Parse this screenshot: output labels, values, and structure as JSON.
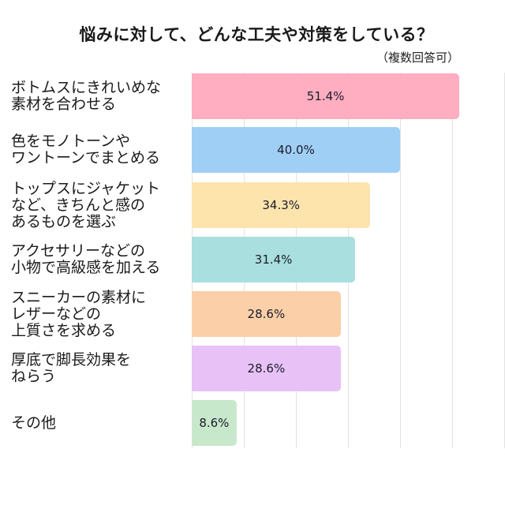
{
  "header": {
    "title": "悩みに対して、どんな工夫や対策をしている？",
    "subtitle": "（複数回答可）"
  },
  "chart_data": {
    "type": "bar",
    "orientation": "horizontal",
    "title": "悩みに対して、どんな工夫や対策をしている？",
    "subtitle": "（複数回答可）",
    "xlabel": "",
    "ylabel": "",
    "xlim": [
      0,
      60
    ],
    "grid": true,
    "legend": null,
    "categories": [
      "ボトムスにきれいめな素材を合わせる",
      "色をモノトーンやワントーンでまとめる",
      "トップスにジャケットなど、きちんと感のあるものを選ぶ",
      "アクセサリーなどの小物で高級感を加える",
      "スニーカーの素材にレザーなどの上質さを求める",
      "厚底で脚長効果をねらう",
      "その他"
    ],
    "values": [
      51.4,
      40.0,
      34.3,
      31.4,
      28.6,
      28.6,
      8.6
    ],
    "value_labels": [
      "51.4%",
      "40.0%",
      "34.3%",
      "31.4%",
      "28.6%",
      "28.6%",
      "8.6%"
    ],
    "colors": [
      "#ffadc0",
      "#a0cff5",
      "#fde4ad",
      "#a9dfde",
      "#fbd0a8",
      "#e8c2f7",
      "#c8e8cc"
    ]
  },
  "rows": [
    {
      "label": "ボトムスにきれいめな\n素材を合わせる",
      "value_label": "51.4%"
    },
    {
      "label": "色をモノトーンや\nワントーンでまとめる",
      "value_label": "40.0%"
    },
    {
      "label": "トップスにジャケット\nなど、きちんと感の\nあるものを選ぶ",
      "value_label": "34.3%"
    },
    {
      "label": "アクセサリーなどの\n小物で高級感を加える",
      "value_label": "31.4%"
    },
    {
      "label": "スニーカーの素材に\nレザーなどの\n上質さを求める",
      "value_label": "28.6%"
    },
    {
      "label": "厚底で脚長効果を\nねらう",
      "value_label": "28.6%"
    },
    {
      "label": "その他",
      "value_label": "8.6%"
    }
  ]
}
